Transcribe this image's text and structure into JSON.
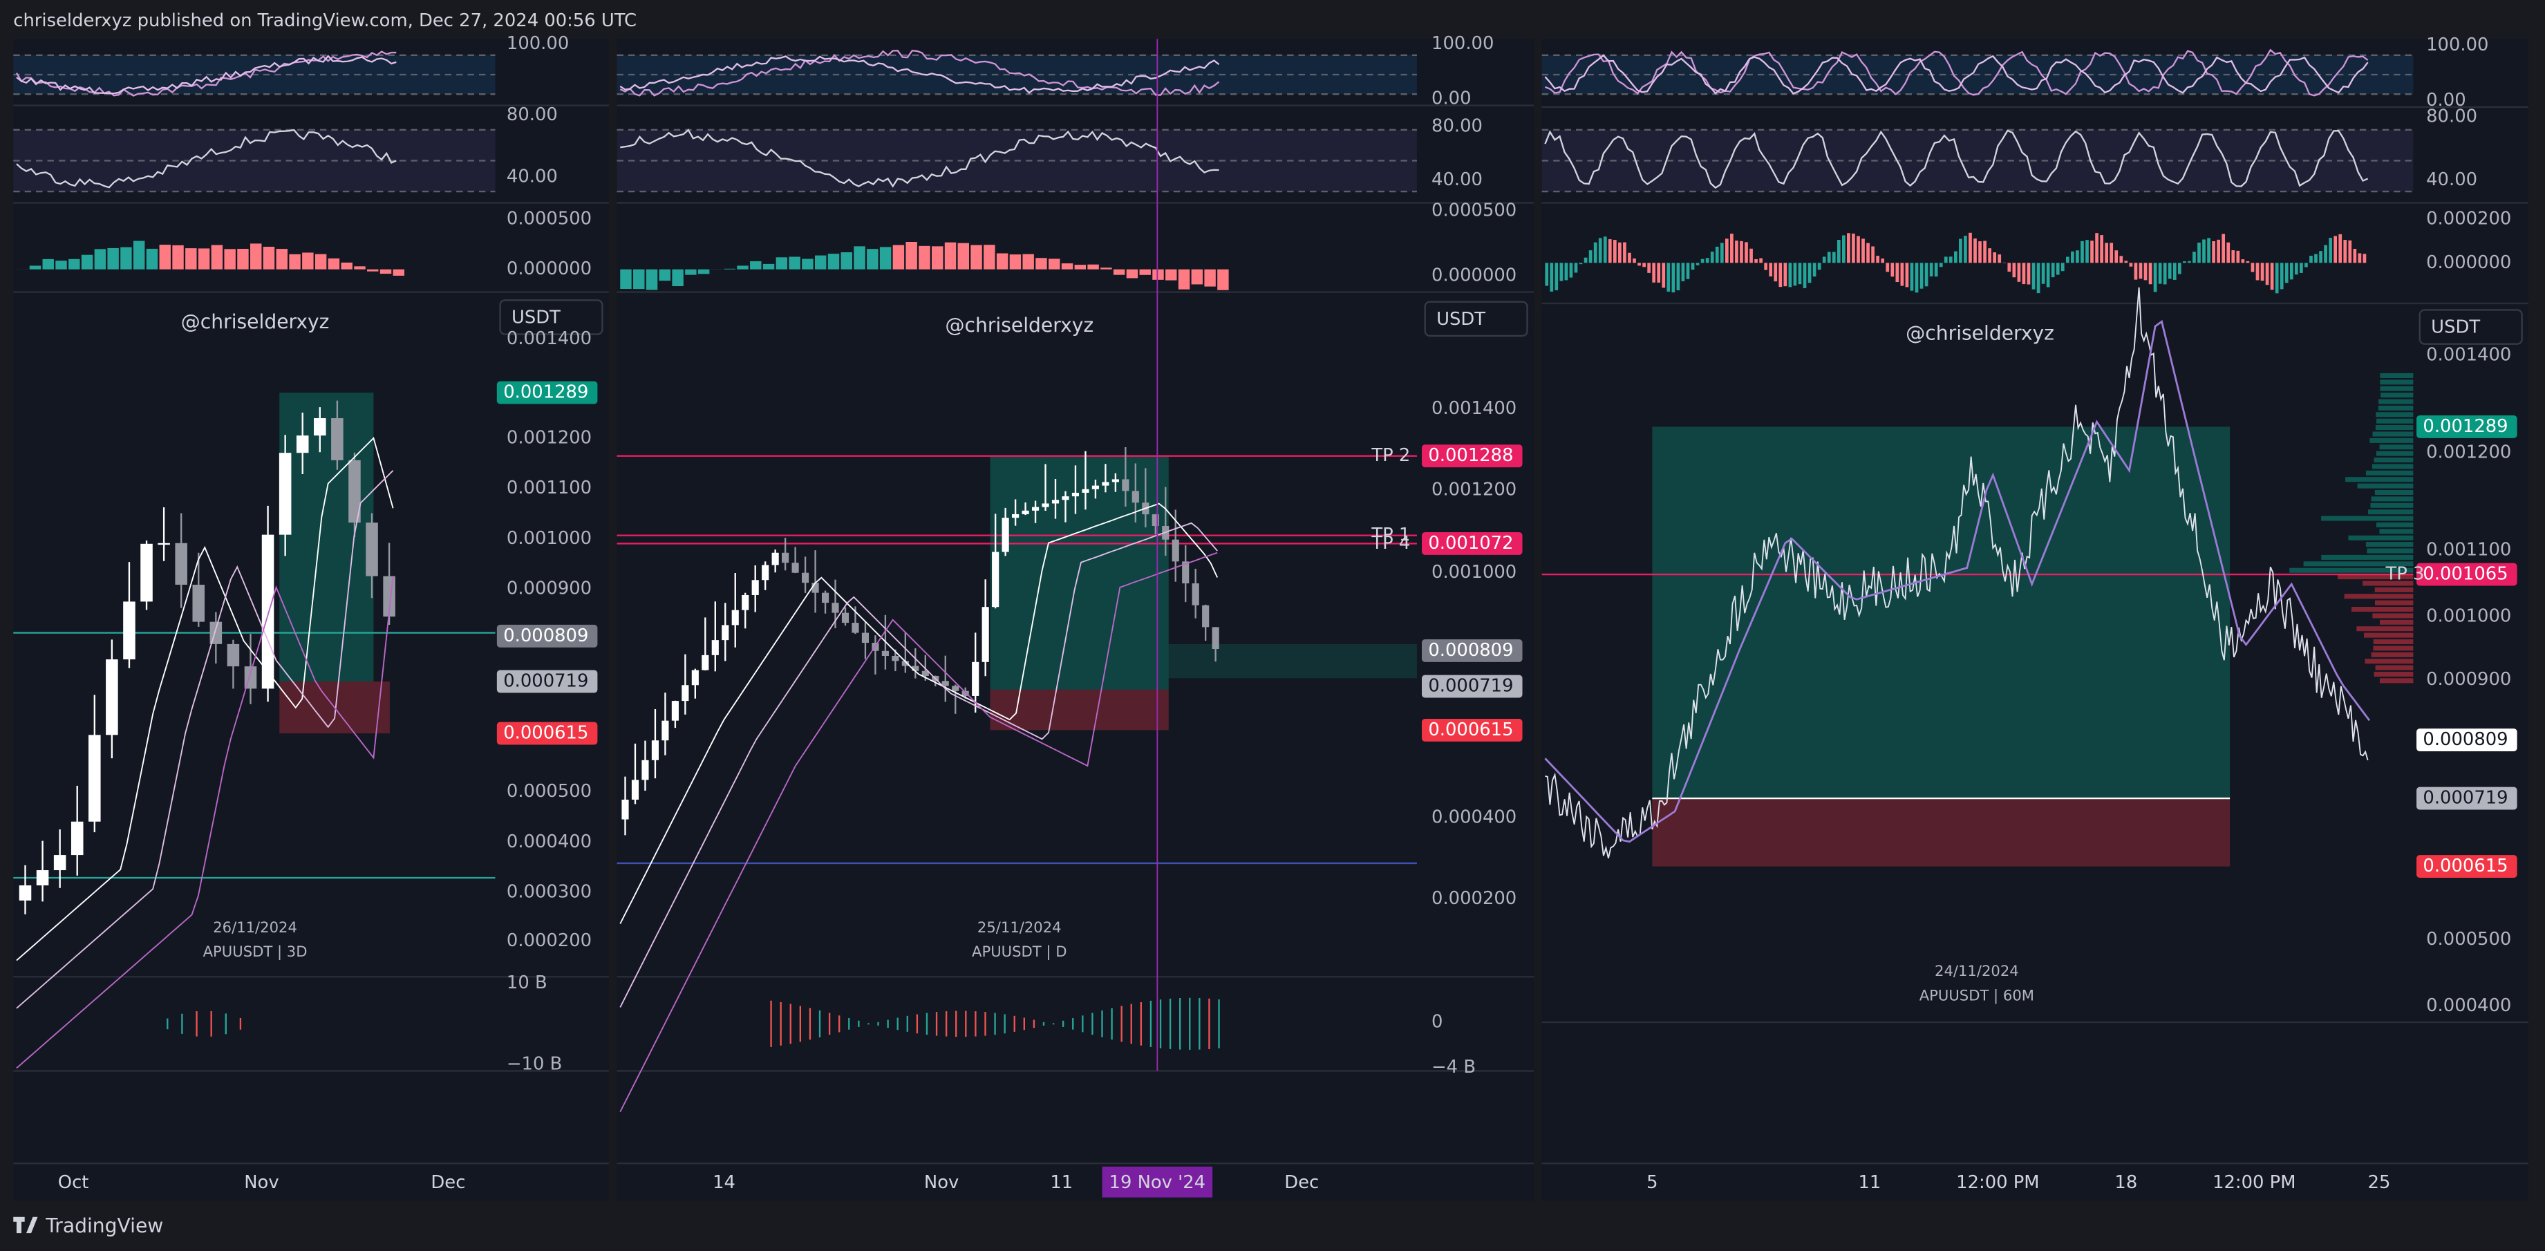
{
  "header": {
    "text": "chriselderxyz published on TradingView.com, Dec 27, 2024 00:56 UTC"
  },
  "panels": [
    {
      "watermark": "@chriselderxyz",
      "date": "26/11/2024",
      "symbol": "APUUSDT | 3D",
      "currency": "USDT",
      "osc_ticks": [
        "100.00",
        "80.00",
        "40.00",
        "0.000500",
        "0.000000"
      ],
      "price_ticks": [
        "0.001400",
        "0.001200",
        "0.001100",
        "0.001000",
        "0.000900",
        "0.000500",
        "0.000400",
        "0.000300",
        "0.000200"
      ],
      "price_badges": [
        "0.001289",
        "0.000809",
        "0.000719",
        "0.000615"
      ],
      "volume_ticks": [
        "10 B",
        "−10 B"
      ],
      "levels": [],
      "time_labels": [
        "Oct",
        "Nov",
        "Dec"
      ]
    },
    {
      "watermark": "@chriselderxyz",
      "date": "25/11/2024",
      "symbol": "APUUSDT | D",
      "currency": "USDT",
      "osc_ticks": [
        "100.00",
        "0.00",
        "80.00",
        "40.00",
        "0.000500",
        "0.000000"
      ],
      "price_ticks": [
        "0.001400",
        "0.001200",
        "0.001000",
        "0.000400",
        "0.000200"
      ],
      "price_badges": [
        "0.001288",
        "0.001072",
        "0.000809",
        "0.000719",
        "0.000615"
      ],
      "volume_ticks": [
        "0",
        "−4 B"
      ],
      "levels": [
        "TP 2",
        "TP 1",
        "TP 4"
      ],
      "time_labels": [
        "14",
        "Nov",
        "11",
        "19 Nov '24",
        "Dec"
      ]
    },
    {
      "watermark": "@chriselderxyz",
      "date": "24/11/2024",
      "symbol": "APUUSDT | 60M",
      "currency": "USDT",
      "osc_ticks": [
        "100.00",
        "0.00",
        "80.00",
        "40.00",
        "0.000200",
        "0.000000"
      ],
      "price_ticks": [
        "0.001400",
        "0.001200",
        "0.001100",
        "0.001000",
        "0.000900",
        "0.000500",
        "0.000400"
      ],
      "price_badges": [
        "0.001289",
        "0.001065",
        "0.000809",
        "0.000719",
        "0.000615"
      ],
      "volume_ticks": [],
      "levels": [
        "TP 3"
      ],
      "time_labels": [
        "5",
        "11",
        "12:00 PM",
        "18",
        "12:00 PM",
        "25"
      ]
    }
  ],
  "footer": {
    "brand": "TradingView"
  }
}
